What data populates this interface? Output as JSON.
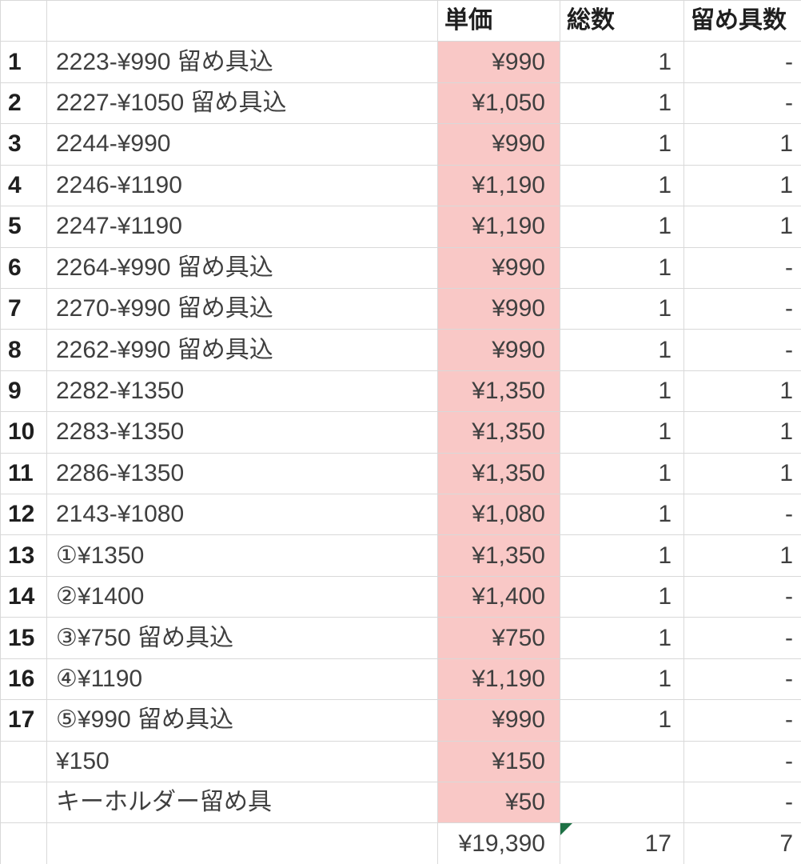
{
  "sheet": {
    "header": {
      "num": "",
      "desc": "",
      "price": "単価",
      "qty": "総数",
      "clasp": "留め具数"
    },
    "rows": [
      {
        "num": "1",
        "desc": "2223-¥990 留め具込",
        "price": "¥990",
        "qty": "1",
        "clasp": "-"
      },
      {
        "num": "2",
        "desc": "2227-¥1050 留め具込",
        "price": "¥1,050",
        "qty": "1",
        "clasp": "-"
      },
      {
        "num": "3",
        "desc": "2244-¥990",
        "price": "¥990",
        "qty": "1",
        "clasp": "1"
      },
      {
        "num": "4",
        "desc": "2246-¥1190",
        "price": "¥1,190",
        "qty": "1",
        "clasp": "1"
      },
      {
        "num": "5",
        "desc": "2247-¥1190",
        "price": "¥1,190",
        "qty": "1",
        "clasp": "1"
      },
      {
        "num": "6",
        "desc": "2264-¥990 留め具込",
        "price": "¥990",
        "qty": "1",
        "clasp": "-"
      },
      {
        "num": "7",
        "desc": "2270-¥990 留め具込",
        "price": "¥990",
        "qty": "1",
        "clasp": "-"
      },
      {
        "num": "8",
        "desc": "2262-¥990 留め具込",
        "price": "¥990",
        "qty": "1",
        "clasp": "-"
      },
      {
        "num": "9",
        "desc": "2282-¥1350",
        "price": "¥1,350",
        "qty": "1",
        "clasp": "1"
      },
      {
        "num": "10",
        "desc": "2283-¥1350",
        "price": "¥1,350",
        "qty": "1",
        "clasp": "1"
      },
      {
        "num": "11",
        "desc": "2286-¥1350",
        "price": "¥1,350",
        "qty": "1",
        "clasp": "1"
      },
      {
        "num": "12",
        "desc": "2143-¥1080",
        "price": "¥1,080",
        "qty": "1",
        "clasp": "-"
      },
      {
        "num": "13",
        "desc": "①¥1350",
        "price": "¥1,350",
        "qty": "1",
        "clasp": "1"
      },
      {
        "num": "14",
        "desc": "②¥1400",
        "price": "¥1,400",
        "qty": "1",
        "clasp": "-"
      },
      {
        "num": "15",
        "desc": "③¥750 留め具込",
        "price": "¥750",
        "qty": "1",
        "clasp": "-"
      },
      {
        "num": "16",
        "desc": "④¥1190",
        "price": "¥1,190",
        "qty": "1",
        "clasp": "-"
      },
      {
        "num": "17",
        "desc": "⑤¥990 留め具込",
        "price": "¥990",
        "qty": "1",
        "clasp": "-"
      },
      {
        "num": "",
        "desc": "¥150",
        "price": "¥150",
        "qty": "",
        "clasp": "-"
      },
      {
        "num": "",
        "desc": "キーホルダー留め具",
        "price": "¥50",
        "qty": "",
        "clasp": "-"
      }
    ],
    "total": {
      "num": "",
      "desc": "",
      "price": "¥19,390",
      "qty": "17",
      "clasp": "7"
    },
    "total_qty_has_error_indicator": true
  },
  "colors": {
    "price_column_highlight": "#f9c8c6",
    "gridline": "#d9d9d9",
    "text_primary": "#1f1f1f",
    "text_secondary": "#3f3f3f",
    "error_indicator_green": "#1e7145",
    "background": "#ffffff"
  }
}
